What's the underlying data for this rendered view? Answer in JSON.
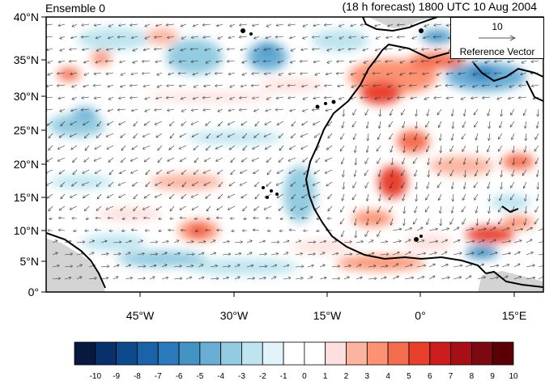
{
  "header": {
    "left_title": "Ensemble 0",
    "right_title": "(18 h forecast) 1800 UTC 10 Aug 2004"
  },
  "map": {
    "lat_labels": [
      "40°N",
      "35°N",
      "30°N",
      "25°N",
      "20°N",
      "15°N",
      "10°N",
      "5°N",
      "0°"
    ],
    "lon_labels": [
      "45°W",
      "30°W",
      "15°W",
      "0°",
      "15°E"
    ],
    "land_mask_color": "#d3d3d3",
    "coastline_color": "#000000"
  },
  "reference_vector": {
    "magnitude": "10",
    "label": "Reference Vector"
  },
  "colorbar": {
    "tick_labels": [
      "-10",
      "-9",
      "-8",
      "-7",
      "-6",
      "-5",
      "-4",
      "-3",
      "-2",
      "-1",
      "0",
      "1",
      "2",
      "3",
      "4",
      "5",
      "6",
      "7",
      "8",
      "9",
      "10"
    ],
    "colors": [
      "#08193f",
      "#08306b",
      "#0d4a8c",
      "#1b63a8",
      "#2c79bb",
      "#4393c3",
      "#6aaed6",
      "#93cbe0",
      "#bde4ef",
      "#e2f4fa",
      "#ffffff",
      "#ffffff",
      "#fde0dd",
      "#fbb4a0",
      "#fc9272",
      "#f46d4f",
      "#e8402d",
      "#cb1d1e",
      "#a50f15",
      "#7d0a12",
      "#5a0007"
    ]
  }
}
